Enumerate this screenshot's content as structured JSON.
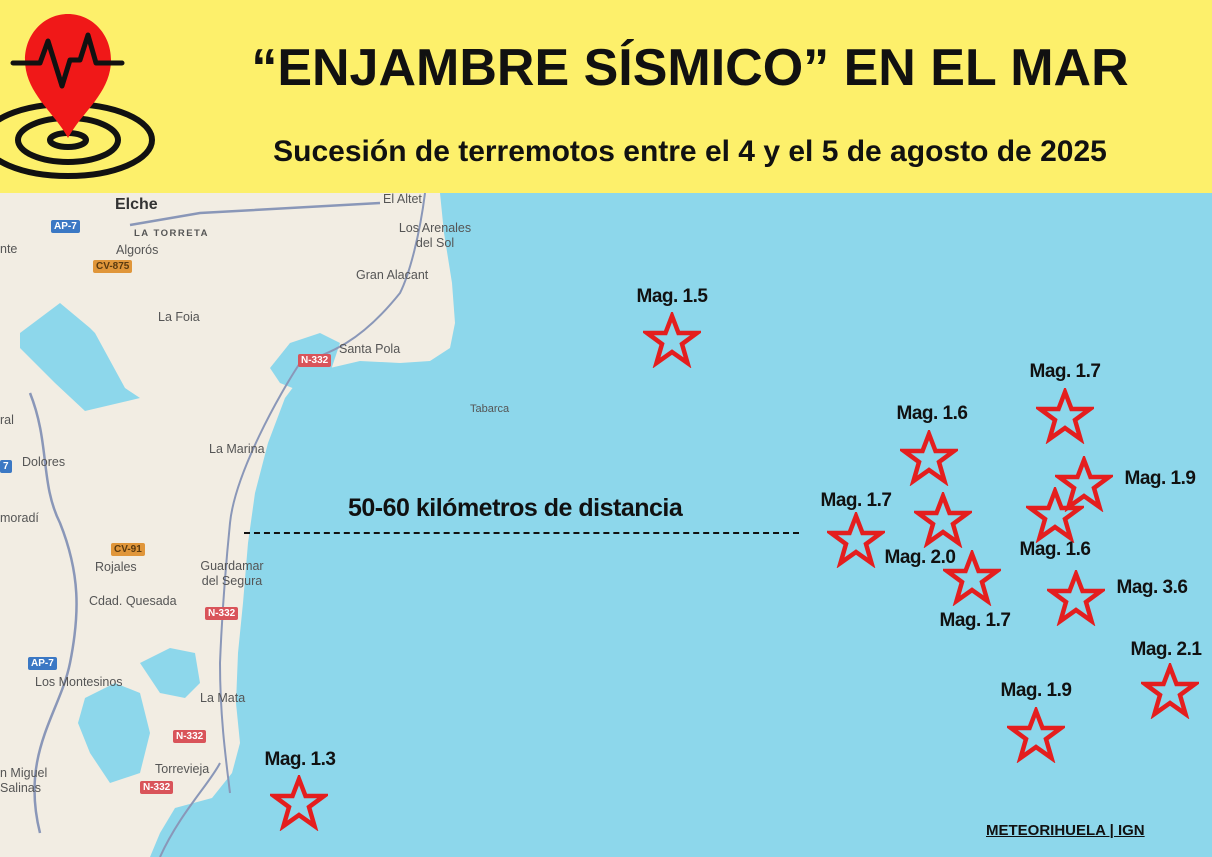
{
  "header": {
    "title": "“ENJAMBRE SÍSMICO” EN EL MAR",
    "subtitle": "Sucesión de terremotos entre el 4 y el 5 de agosto de 2025",
    "logo_icon": "earthquake-location-pin-icon"
  },
  "map": {
    "towns": [
      "Elche",
      "LA TORRETA",
      "Algorós",
      "La Foia",
      "Santa Pola",
      "El Altet",
      "Los Arenales del Sol",
      "Gran Alacant",
      "Tabarca",
      "La Marina",
      "Dolores",
      "Rojales",
      "Guardamar del Segura",
      "Cdad. Quesada",
      "Los Montesinos",
      "La Mata",
      "Torrevieja",
      "n Miguel Salinas",
      "nte",
      "ral",
      "moradí"
    ],
    "roads": [
      "AP-7",
      "CV-875",
      "N-332",
      "CV-91",
      "N-332",
      "AP-7",
      "N-332",
      "N-332",
      "7"
    ],
    "distance_label": "50-60 kilómetros de distancia",
    "earthquakes": [
      {
        "label": "Mag. 1.5",
        "magnitude": 1.5
      },
      {
        "label": "Mag. 1.7",
        "magnitude": 1.7
      },
      {
        "label": "Mag. 1.6",
        "magnitude": 1.6
      },
      {
        "label": "Mag. 1.9",
        "magnitude": 1.9
      },
      {
        "label": "Mag. 1.6",
        "magnitude": 1.6
      },
      {
        "label": "Mag. 2.0",
        "magnitude": 2.0
      },
      {
        "label": "Mag. 1.7",
        "magnitude": 1.7
      },
      {
        "label": "Mag. 1.7",
        "magnitude": 1.7
      },
      {
        "label": "Mag. 3.6",
        "magnitude": 3.6
      },
      {
        "label": "Mag. 2.1",
        "magnitude": 2.1
      },
      {
        "label": "Mag. 1.9",
        "magnitude": 1.9
      },
      {
        "label": "Mag. 1.3",
        "magnitude": 1.3
      }
    ],
    "marker_icon": "star-icon",
    "colors": {
      "sea": "#8dd7eb",
      "land": "#f2ede3",
      "marker": "#e41e1e",
      "header": "#fdf06b"
    }
  },
  "footer": {
    "credit": "METEORIHUELA | IGN"
  }
}
